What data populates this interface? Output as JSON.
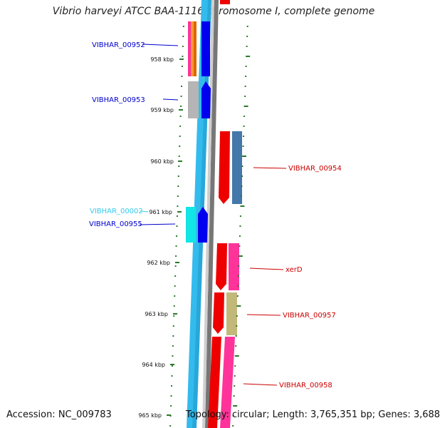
{
  "title": "Vibrio harveyi ATCC BAA-1116 chromosome I, complete genome",
  "footer": {
    "accession": "Accession: NC_009783",
    "summary": "Topology: circular; Length: 3,765,351 bp; Genes: 3,688"
  },
  "ticks": [
    "958 kbp",
    "959 kbp",
    "960 kbp",
    "961 kbp",
    "962 kbp",
    "963 kbp",
    "964 kbp",
    "965 kbp"
  ],
  "gene_labels": [
    {
      "id": "l1",
      "text": "VIBHAR_00952",
      "color": "#0000cc"
    },
    {
      "id": "l2",
      "text": "VIBHAR_00953",
      "color": "#0000cc"
    },
    {
      "id": "l3",
      "text": "VIBHAR_00002",
      "color": "#33ccee"
    },
    {
      "id": "l4",
      "text": "VIBHAR_00955",
      "color": "#0000cc"
    },
    {
      "id": "l5",
      "text": "VIBHAR_00954",
      "color": "#cc0000"
    },
    {
      "id": "l6",
      "text": "xerD",
      "color": "#cc0000"
    },
    {
      "id": "l7",
      "text": "VIBHAR_00957",
      "color": "#cc0000"
    },
    {
      "id": "l8",
      "text": "VIBHAR_00958",
      "color": "#cc0000"
    }
  ],
  "colors": {
    "forward_strand": "#0000ee",
    "reverse_strand": "#ee0000",
    "backbone": "#33bbee",
    "tick": "#2a7a2a"
  }
}
